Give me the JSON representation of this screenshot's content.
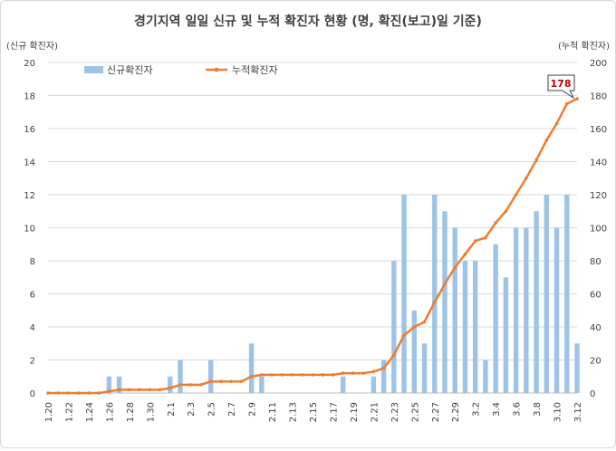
{
  "chart_data": {
    "type": "bar+line",
    "title": "경기지역 일일 신규 및 누적 확진자 현황 (명, 확진(보고)일 기준)",
    "ylabel_left": "(신규 확진자)",
    "ylabel_right": "(누적 확진자)",
    "ylim_left": [
      0,
      20
    ],
    "ylim_right": [
      0,
      200
    ],
    "yticks_left": [
      "0",
      "2",
      "4",
      "6",
      "8",
      "10",
      "12",
      "14",
      "16",
      "18",
      "20"
    ],
    "yticks_right": [
      "0",
      "20",
      "40",
      "60",
      "80",
      "100",
      "120",
      "140",
      "160",
      "180",
      "200"
    ],
    "grid": true,
    "legend_position": "top-left",
    "x_tick_labels": [
      "1.20",
      "1.22",
      "1.24",
      "1.26",
      "1.28",
      "1.30",
      "2.1",
      "2.3",
      "2.5",
      "2.7",
      "2.9",
      "2.11",
      "2.13",
      "2.15",
      "2.17",
      "2.19",
      "2.21",
      "2.23",
      "2.25",
      "2.27",
      "2.29",
      "3.2",
      "3.4",
      "3.6",
      "3.8",
      "3.10",
      "3.12"
    ],
    "categories": [
      "1.20",
      "1.21",
      "1.22",
      "1.23",
      "1.24",
      "1.25",
      "1.26",
      "1.27",
      "1.28",
      "1.29",
      "1.30",
      "1.31",
      "2.1",
      "2.2",
      "2.3",
      "2.4",
      "2.5",
      "2.6",
      "2.7",
      "2.8",
      "2.9",
      "2.10",
      "2.11",
      "2.12",
      "2.13",
      "2.14",
      "2.15",
      "2.16",
      "2.17",
      "2.18",
      "2.19",
      "2.20",
      "2.21",
      "2.22",
      "2.23",
      "2.24",
      "2.25",
      "2.26",
      "2.27",
      "2.28",
      "2.29",
      "3.1",
      "3.2",
      "3.3",
      "3.4",
      "3.5",
      "3.6",
      "3.7",
      "3.8",
      "3.9",
      "3.10",
      "3.11",
      "3.12"
    ],
    "series": [
      {
        "name": "신규확진자",
        "kind": "bar",
        "axis": "left",
        "color": "#9dc3e6",
        "values": [
          0,
          0,
          0,
          0,
          0,
          0,
          1,
          1,
          0,
          0,
          0,
          0,
          1,
          2,
          0,
          0,
          2,
          0,
          0,
          0,
          3,
          1,
          0,
          0,
          0,
          0,
          0,
          0,
          0,
          1,
          0,
          0,
          1,
          2,
          8,
          12,
          5,
          3,
          12,
          11,
          10,
          8,
          8,
          2,
          9,
          7,
          10,
          10,
          11,
          12,
          10,
          12,
          3
        ]
      },
      {
        "name": "누적확진자",
        "kind": "line",
        "axis": "right",
        "color": "#ed7d31",
        "values": [
          0,
          0,
          0,
          0,
          0,
          0,
          1,
          2,
          2,
          2,
          2,
          2,
          3,
          5,
          5,
          5,
          7,
          7,
          7,
          7,
          10,
          11,
          11,
          11,
          11,
          11,
          11,
          11,
          11,
          12,
          12,
          12,
          13,
          15,
          23,
          35,
          40,
          43,
          55,
          66,
          76,
          84,
          92,
          94,
          103,
          110,
          120,
          130,
          141,
          153,
          163,
          175,
          178
        ]
      }
    ],
    "annotation": "178"
  }
}
